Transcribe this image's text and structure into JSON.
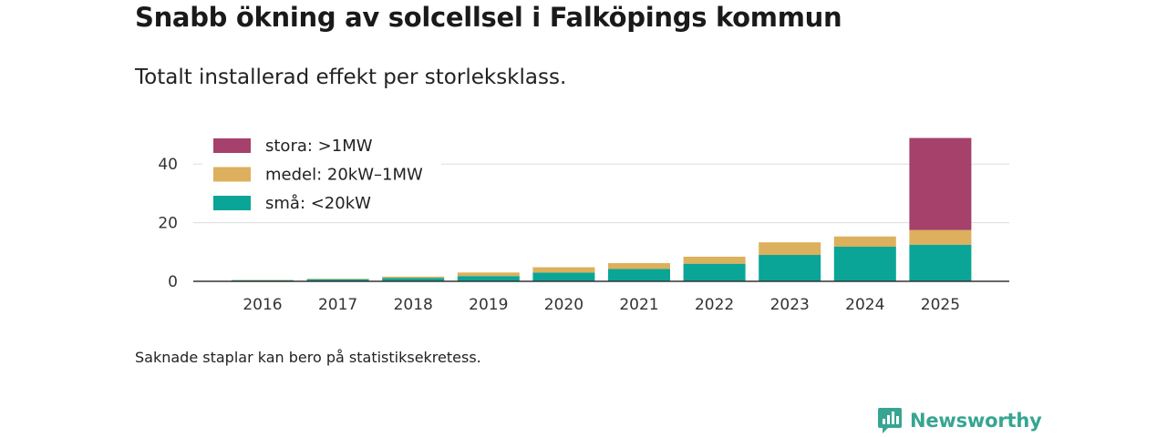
{
  "title": "Snabb ökning av solcellsel i Falköpings kommun",
  "subtitle": "Totalt installerad effekt per storleksklass.",
  "footnote": "Saknade staplar kan bero på statistiksekretess.",
  "brand": {
    "name": "Newsworthy",
    "icon": "newsworthy-logo-icon"
  },
  "colors": {
    "stora": "#a5416b",
    "medel": "#dcb05c",
    "sma": "#0aa597",
    "grid": "#dddddd",
    "axis": "#333333"
  },
  "chart_data": {
    "type": "bar",
    "stacked": true,
    "title": "Snabb ökning av solcellsel i Falköpings kommun",
    "subtitle": "Totalt installerad effekt per storleksklass.",
    "xlabel": "",
    "ylabel": "",
    "ylim": [
      0,
      50
    ],
    "yticks": [
      0,
      20,
      40
    ],
    "grid": true,
    "legend_position": "top-left",
    "categories": [
      "2016",
      "2017",
      "2018",
      "2019",
      "2020",
      "2021",
      "2022",
      "2023",
      "2024",
      "2025"
    ],
    "series": [
      {
        "name": "små: <20kW",
        "key": "sma",
        "values": [
          0.4,
          0.7,
          1.1,
          1.8,
          3.0,
          4.2,
          6.0,
          9.0,
          11.8,
          12.5
        ]
      },
      {
        "name": "medel: 20kW–1MW",
        "key": "medel",
        "values": [
          0.1,
          0.2,
          0.5,
          1.2,
          1.8,
          2.0,
          2.4,
          4.3,
          3.5,
          5.0
        ]
      },
      {
        "name": "stora: >1MW",
        "key": "stora",
        "values": [
          0,
          0,
          0,
          0,
          0,
          0,
          0,
          0,
          0,
          31.4
        ]
      }
    ]
  }
}
